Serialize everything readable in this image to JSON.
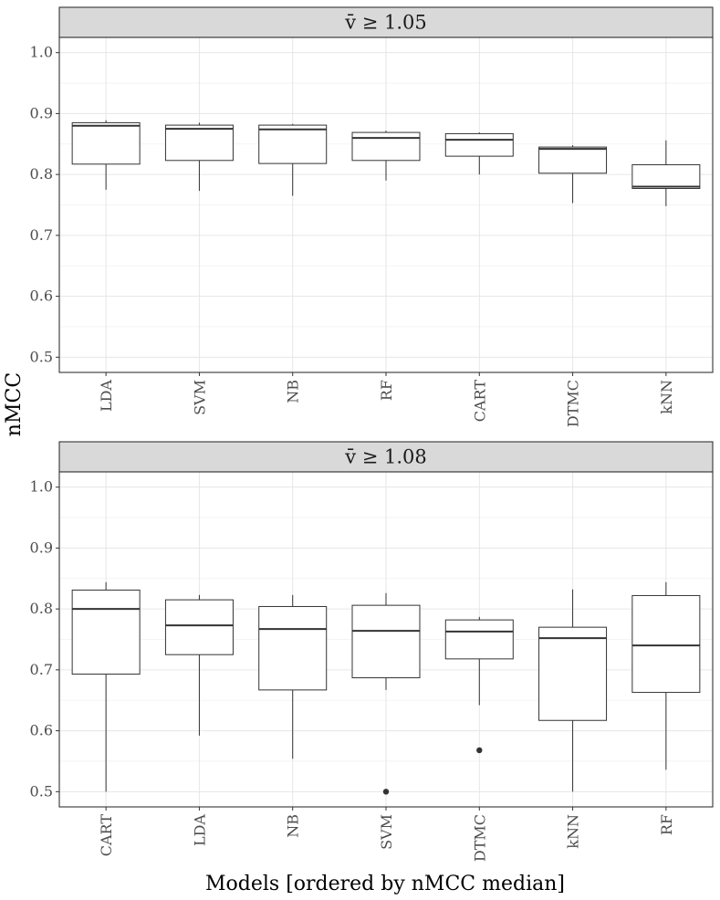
{
  "chart_data": {
    "type": "boxplot",
    "ylabel": "nMCC",
    "xlabel": "Models [ordered by nMCC median]",
    "ylim": [
      0.475,
      1.025
    ],
    "y_ticks": [
      "0.5",
      "0.6",
      "0.7",
      "0.8",
      "0.9",
      "1.0"
    ],
    "grid": true,
    "panels": [
      {
        "strip_label": "v̄ ≥ 1.05",
        "categories": [
          "LDA",
          "SVM",
          "NB",
          "RF",
          "CART",
          "DTMC",
          "kNN"
        ],
        "boxes": [
          {
            "min": 0.775,
            "q1": 0.817,
            "median": 0.88,
            "q3": 0.885,
            "max": 0.889,
            "outliers": []
          },
          {
            "min": 0.773,
            "q1": 0.823,
            "median": 0.875,
            "q3": 0.881,
            "max": 0.885,
            "outliers": []
          },
          {
            "min": 0.765,
            "q1": 0.818,
            "median": 0.874,
            "q3": 0.881,
            "max": 0.883,
            "outliers": []
          },
          {
            "min": 0.79,
            "q1": 0.823,
            "median": 0.86,
            "q3": 0.869,
            "max": 0.872,
            "outliers": []
          },
          {
            "min": 0.8,
            "q1": 0.83,
            "median": 0.857,
            "q3": 0.867,
            "max": 0.869,
            "outliers": []
          },
          {
            "min": 0.753,
            "q1": 0.802,
            "median": 0.842,
            "q3": 0.845,
            "max": 0.848,
            "outliers": []
          },
          {
            "min": 0.748,
            "q1": 0.777,
            "median": 0.78,
            "q3": 0.816,
            "max": 0.856,
            "outliers": []
          }
        ]
      },
      {
        "strip_label": "v̄ ≥ 1.08",
        "categories": [
          "CART",
          "LDA",
          "NB",
          "SVM",
          "DTMC",
          "kNN",
          "RF"
        ],
        "boxes": [
          {
            "min": 0.5,
            "q1": 0.693,
            "median": 0.8,
            "q3": 0.831,
            "max": 0.844,
            "outliers": []
          },
          {
            "min": 0.592,
            "q1": 0.725,
            "median": 0.773,
            "q3": 0.815,
            "max": 0.823,
            "outliers": []
          },
          {
            "min": 0.554,
            "q1": 0.667,
            "median": 0.767,
            "q3": 0.804,
            "max": 0.823,
            "outliers": []
          },
          {
            "min": 0.667,
            "q1": 0.687,
            "median": 0.764,
            "q3": 0.806,
            "max": 0.826,
            "outliers": [
              0.5
            ]
          },
          {
            "min": 0.642,
            "q1": 0.718,
            "median": 0.763,
            "q3": 0.782,
            "max": 0.787,
            "outliers": [
              0.568
            ]
          },
          {
            "min": 0.5,
            "q1": 0.617,
            "median": 0.752,
            "q3": 0.77,
            "max": 0.832,
            "outliers": []
          },
          {
            "min": 0.536,
            "q1": 0.663,
            "median": 0.74,
            "q3": 0.822,
            "max": 0.844,
            "outliers": []
          }
        ]
      }
    ]
  }
}
